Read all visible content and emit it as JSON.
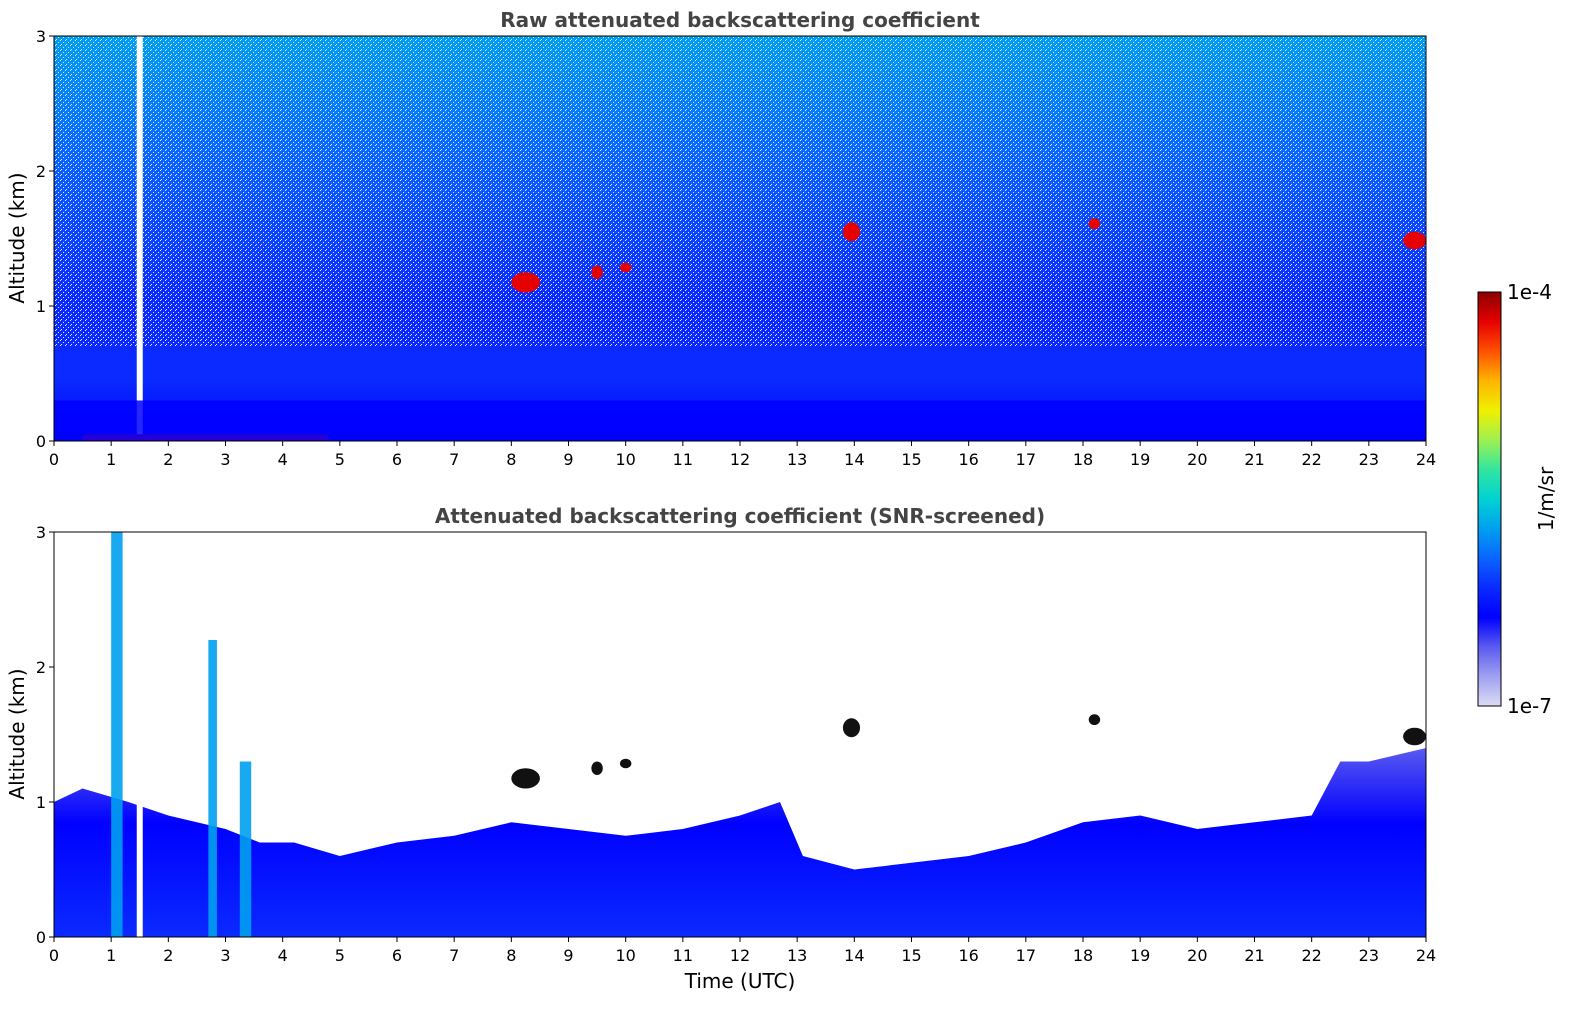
{
  "chart_data": [
    {
      "type": "heatmap",
      "title": "Raw attenuated backscattering coefficient",
      "xlabel": "",
      "ylabel": "Altitude (km)",
      "xlim": [
        0,
        24
      ],
      "ylim": [
        0,
        3
      ],
      "xticks": [
        "0",
        "1",
        "2",
        "3",
        "4",
        "5",
        "6",
        "7",
        "8",
        "9",
        "10",
        "11",
        "12",
        "13",
        "14",
        "15",
        "16",
        "17",
        "18",
        "19",
        "20",
        "21",
        "22",
        "23",
        "24"
      ],
      "yticks": [
        "0",
        "1",
        "2",
        "3"
      ],
      "colorbar_range": [
        1e-07,
        0.0001
      ],
      "features": [
        {
          "kind": "data-gap",
          "time": 1.5
        },
        {
          "kind": "near-surface-high",
          "time": [
            0.5,
            4.8
          ],
          "altitude": [
            0,
            0.05
          ]
        },
        {
          "kind": "boundary-layer",
          "altitude_top": 0.3
        },
        {
          "kind": "cloud",
          "time": [
            8.0,
            8.5
          ],
          "altitude": [
            1.1,
            1.25
          ]
        },
        {
          "kind": "cloud",
          "time": [
            9.4,
            9.6
          ],
          "altitude": [
            1.2,
            1.3
          ]
        },
        {
          "kind": "cloud",
          "time": [
            9.9,
            10.1
          ],
          "altitude": [
            1.25,
            1.32
          ]
        },
        {
          "kind": "cloud",
          "time": [
            13.8,
            14.1
          ],
          "altitude": [
            1.48,
            1.62
          ]
        },
        {
          "kind": "cloud",
          "time": [
            18.1,
            18.3
          ],
          "altitude": [
            1.57,
            1.65
          ]
        },
        {
          "kind": "cloud",
          "time": [
            23.6,
            24.0
          ],
          "altitude": [
            1.42,
            1.55
          ]
        }
      ]
    },
    {
      "type": "heatmap",
      "title": "Attenuated backscattering coefficient (SNR-screened)",
      "xlabel": "Time (UTC)",
      "ylabel": "Altitude (km)",
      "xlim": [
        0,
        24
      ],
      "ylim": [
        0,
        3
      ],
      "xticks": [
        "0",
        "1",
        "2",
        "3",
        "4",
        "5",
        "6",
        "7",
        "8",
        "9",
        "10",
        "11",
        "12",
        "13",
        "14",
        "15",
        "16",
        "17",
        "18",
        "19",
        "20",
        "21",
        "22",
        "23",
        "24"
      ],
      "yticks": [
        "0",
        "1",
        "2",
        "3"
      ],
      "colorbar_range": [
        1e-07,
        0.0001
      ],
      "features": [
        {
          "kind": "data-gap",
          "time": 1.5
        },
        {
          "kind": "plume",
          "time": [
            1.0,
            1.2
          ],
          "altitude": [
            0,
            3.0
          ]
        },
        {
          "kind": "plume",
          "time": [
            2.7,
            2.85
          ],
          "altitude": [
            0,
            2.2
          ]
        },
        {
          "kind": "plume",
          "time": [
            3.25,
            3.45
          ],
          "altitude": [
            0,
            1.3
          ]
        },
        {
          "kind": "cloud",
          "time": [
            8.0,
            8.5
          ],
          "altitude": [
            1.1,
            1.25
          ]
        },
        {
          "kind": "cloud",
          "time": [
            9.4,
            9.6
          ],
          "altitude": [
            1.2,
            1.3
          ]
        },
        {
          "kind": "cloud",
          "time": [
            9.9,
            10.1
          ],
          "altitude": [
            1.25,
            1.32
          ]
        },
        {
          "kind": "cloud",
          "time": [
            13.8,
            14.1
          ],
          "altitude": [
            1.48,
            1.62
          ]
        },
        {
          "kind": "cloud",
          "time": [
            18.1,
            18.3
          ],
          "altitude": [
            1.57,
            1.65
          ]
        },
        {
          "kind": "cloud",
          "time": [
            23.6,
            24.0
          ],
          "altitude": [
            1.42,
            1.55
          ]
        }
      ]
    }
  ],
  "colorbar": {
    "label": "1/m/sr",
    "max_label": "1e-4",
    "min_label": "1e-7",
    "colormap": [
      "#dcdcf5",
      "#a0a0f0",
      "#5a5af0",
      "#0000ff",
      "#0a2aff",
      "#0a64ff",
      "#00a0f0",
      "#00d2d2",
      "#32e6a0",
      "#a0f050",
      "#f0f000",
      "#ffb400",
      "#ff5000",
      "#e60000",
      "#8c0000"
    ]
  },
  "colors": {
    "title": "#444444",
    "background": "#ffffff",
    "axis": "#000000"
  }
}
